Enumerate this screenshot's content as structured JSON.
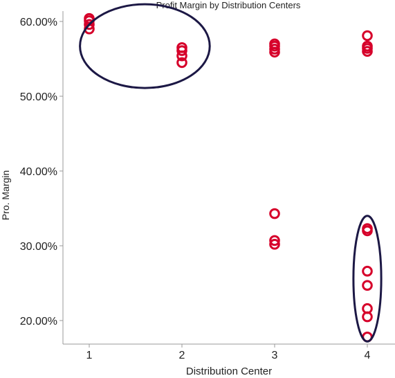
{
  "chart_data": {
    "type": "scatter",
    "title": "Profit Margin by Distribution Centers",
    "xlabel": "Distribution Center",
    "ylabel": "Pro. Margin",
    "x_ticks": [
      "1",
      "2",
      "3",
      "4"
    ],
    "y_ticks": [
      "20.00%",
      "30.00%",
      "40.00%",
      "50.00%",
      "60.00%"
    ],
    "y_tick_values": [
      20,
      30,
      40,
      50,
      60
    ],
    "xlim": [
      0.6,
      4.3
    ],
    "ylim": [
      17,
      61.5
    ],
    "grid": false,
    "series": [
      {
        "marker": "hollow-circle",
        "color": "#d6002a",
        "points": [
          {
            "x": 1,
            "y": 60.4
          },
          {
            "x": 1,
            "y": 60.1
          },
          {
            "x": 1,
            "y": 59.6
          },
          {
            "x": 1,
            "y": 59.0
          },
          {
            "x": 2,
            "y": 56.5
          },
          {
            "x": 2,
            "y": 56.1
          },
          {
            "x": 2,
            "y": 55.4
          },
          {
            "x": 2,
            "y": 54.5
          },
          {
            "x": 3,
            "y": 57.0
          },
          {
            "x": 3,
            "y": 56.7
          },
          {
            "x": 3,
            "y": 56.3
          },
          {
            "x": 3,
            "y": 55.9
          },
          {
            "x": 3,
            "y": 34.3
          },
          {
            "x": 3,
            "y": 30.7
          },
          {
            "x": 3,
            "y": 30.2
          },
          {
            "x": 4,
            "y": 58.1
          },
          {
            "x": 4,
            "y": 56.7
          },
          {
            "x": 4,
            "y": 56.4
          },
          {
            "x": 4,
            "y": 56.0
          },
          {
            "x": 4,
            "y": 32.3
          },
          {
            "x": 4,
            "y": 32.0
          },
          {
            "x": 4,
            "y": 26.6
          },
          {
            "x": 4,
            "y": 24.7
          },
          {
            "x": 4,
            "y": 21.6
          },
          {
            "x": 4,
            "y": 20.5
          },
          {
            "x": 4,
            "y": 17.8
          }
        ]
      }
    ],
    "annotations": [
      {
        "shape": "ellipse",
        "color": "#1c1845",
        "cx": 1.6,
        "cy": 56.7,
        "rx": 0.7,
        "ry": 5.6
      },
      {
        "shape": "ellipse",
        "color": "#1c1845",
        "cx": 4.0,
        "cy": 25.6,
        "rx": 0.15,
        "ry": 8.4
      }
    ]
  }
}
